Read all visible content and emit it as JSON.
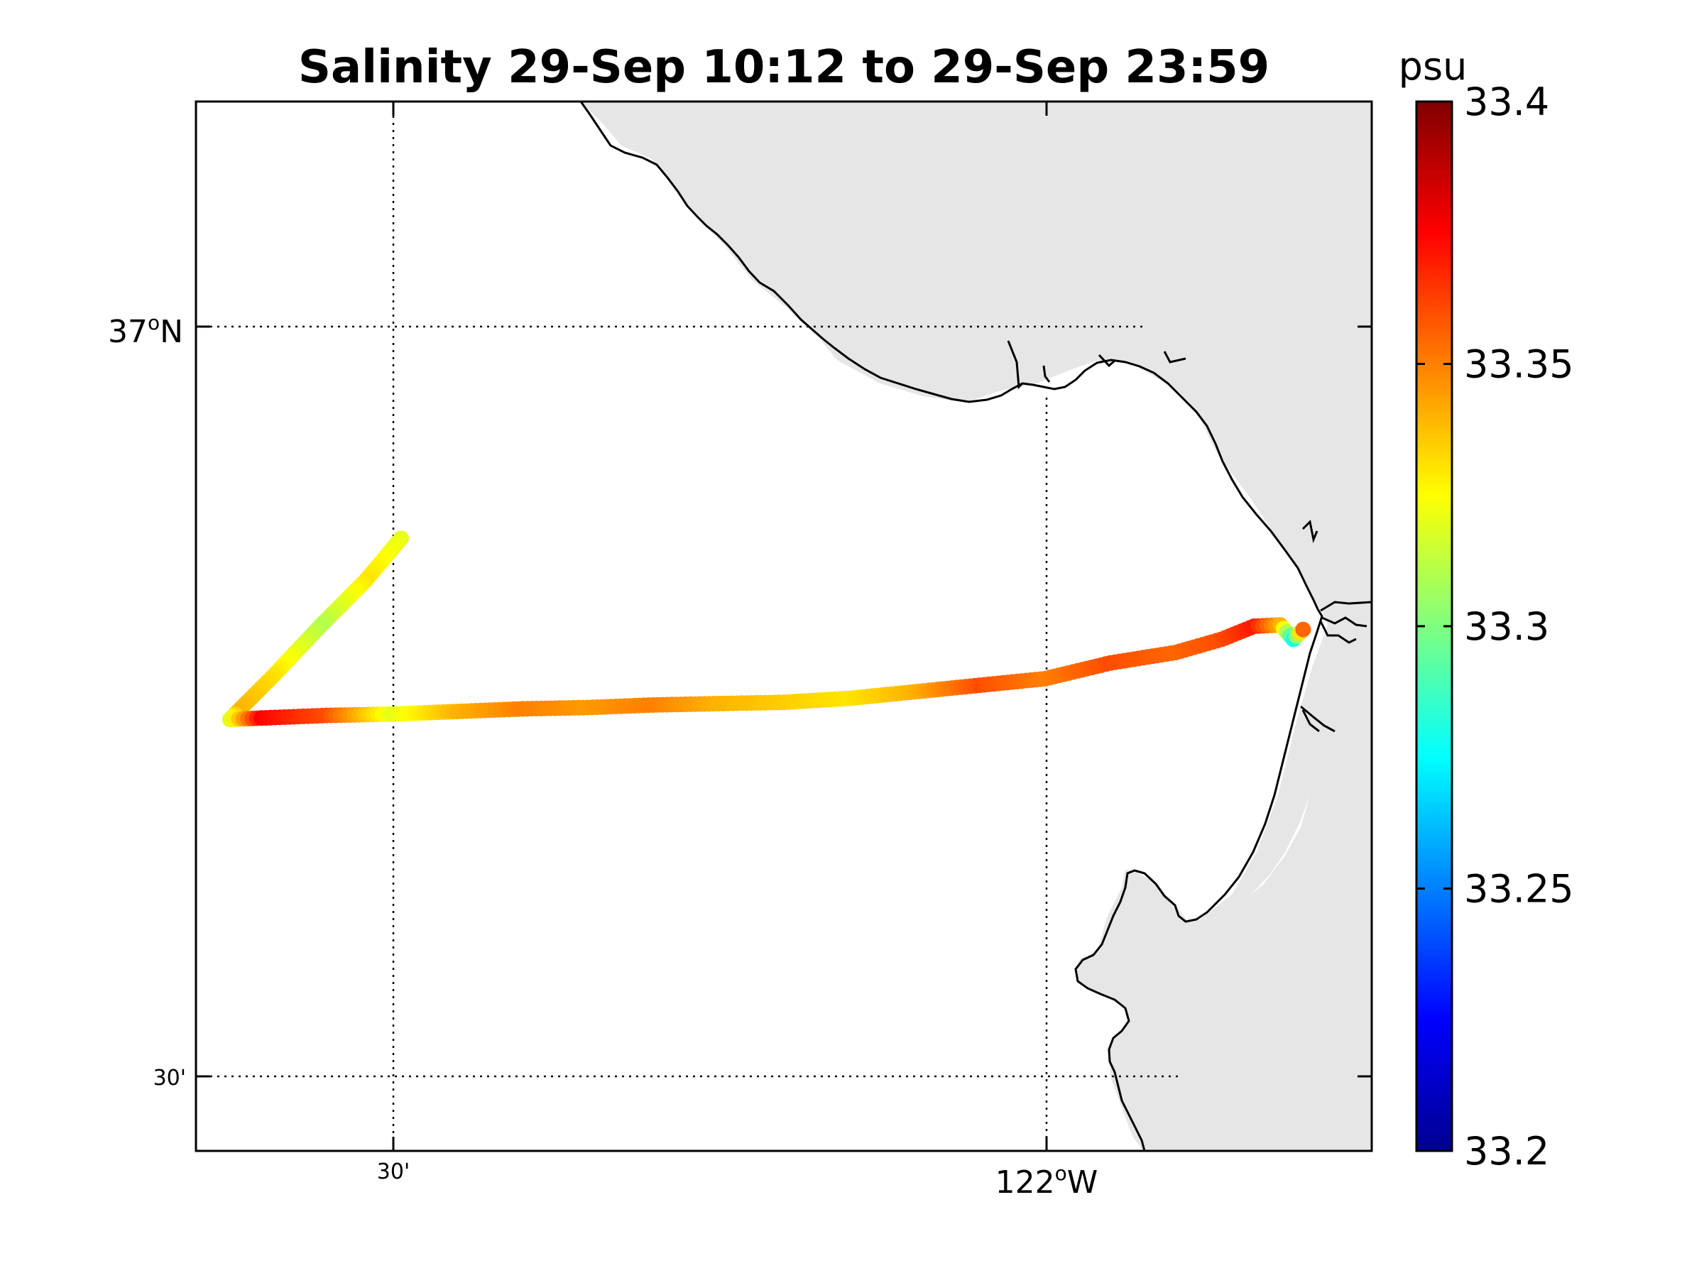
{
  "title": "Salinity 29-Sep 10:12 to 29-Sep 23:59",
  "map": {
    "lon_range": [
      -122.65,
      -121.75
    ],
    "lat_range": [
      36.45,
      37.25
    ],
    "lat_gridlines": [
      {
        "lat": 37.0,
        "label": "37",
        "suffix": "N",
        "major": true
      },
      {
        "lat": 36.5,
        "label": "30'",
        "suffix": "",
        "major": false
      }
    ],
    "lon_gridlines": [
      {
        "lon": -122.5,
        "label": "30'",
        "suffix": "",
        "major": false
      },
      {
        "lon": -122.0,
        "label": "122",
        "suffix": "W",
        "major": true
      }
    ],
    "land_color": "#e6e6e6",
    "coast_color": "#000000",
    "grid_style": "dotted"
  },
  "colorbar": {
    "label": "psu",
    "min": 33.2,
    "max": 33.4,
    "ticks": [
      "33.2",
      "33.25",
      "33.3",
      "33.35",
      "33.4"
    ],
    "colormap": "jet"
  },
  "chart_data": {
    "type": "scatter",
    "variable": "salinity",
    "units": "psu",
    "track": [
      {
        "lon": -122.493,
        "lat": 36.917
      },
      {
        "lon": -122.52,
        "lat": 36.885
      },
      {
        "lon": -122.555,
        "lat": 36.85
      },
      {
        "lon": -122.59,
        "lat": 36.813
      },
      {
        "lon": -122.618,
        "lat": 36.785
      },
      {
        "lon": -122.624,
        "lat": 36.779
      },
      {
        "lon": -122.6,
        "lat": 36.78
      },
      {
        "lon": -122.55,
        "lat": 36.782
      },
      {
        "lon": -122.5,
        "lat": 36.783
      },
      {
        "lon": -122.45,
        "lat": 36.785
      },
      {
        "lon": -122.4,
        "lat": 36.787
      },
      {
        "lon": -122.35,
        "lat": 36.788
      },
      {
        "lon": -122.3,
        "lat": 36.79
      },
      {
        "lon": -122.25,
        "lat": 36.791
      },
      {
        "lon": -122.2,
        "lat": 36.792
      },
      {
        "lon": -122.15,
        "lat": 36.795
      },
      {
        "lon": -122.1,
        "lat": 36.8
      },
      {
        "lon": -122.05,
        "lat": 36.805
      },
      {
        "lon": -122.0,
        "lat": 36.81
      },
      {
        "lon": -121.95,
        "lat": 36.822
      },
      {
        "lon": -121.9,
        "lat": 36.83
      },
      {
        "lon": -121.865,
        "lat": 36.84
      },
      {
        "lon": -121.84,
        "lat": 36.85
      },
      {
        "lon": -121.82,
        "lat": 36.851
      },
      {
        "lon": -121.81,
        "lat": 36.84
      },
      {
        "lon": -121.8,
        "lat": 36.85
      }
    ],
    "salinity": [
      33.32,
      33.33,
      33.31,
      33.33,
      33.34,
      33.32,
      33.375,
      33.36,
      33.32,
      33.34,
      33.35,
      33.345,
      33.35,
      33.34,
      33.335,
      33.33,
      33.34,
      33.36,
      33.35,
      33.36,
      33.355,
      33.36,
      33.37,
      33.34,
      33.28,
      33.38
    ]
  }
}
